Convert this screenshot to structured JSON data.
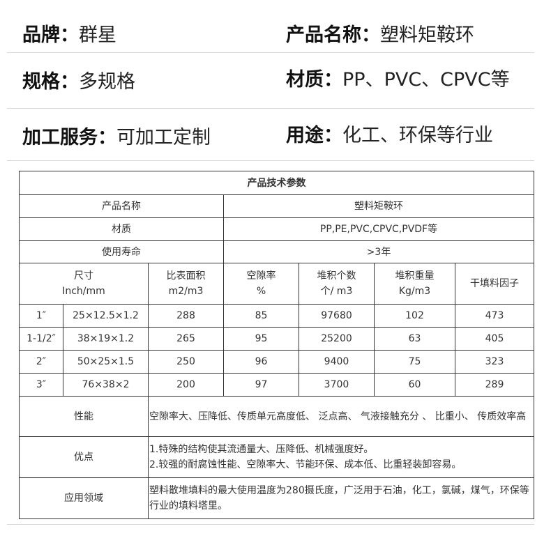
{
  "header": {
    "brand_label": "品牌：",
    "brand_value": "群星",
    "product_label": "产品名称：",
    "product_value": "塑料矩鞍环",
    "spec_label": "规格：",
    "spec_value": "多规格",
    "material_label": "材质：",
    "material_value": "PP、PVC、CPVC等",
    "service_label": "加工服务：",
    "service_value": "可加工定制",
    "usage_label": "用途：",
    "usage_value": "化工、环保等行业"
  },
  "table": {
    "title": "产品技术参数",
    "name_label": "产品名称",
    "name_value": "塑料矩鞍环",
    "material_label": "材质",
    "material_value": "PP,PE,PVC,CPVC,PVDF等",
    "life_label": "使用寿命",
    "life_value": ">3年",
    "columns": [
      {
        "l1": "尺寸",
        "l2": "Inch/mm"
      },
      {
        "l1": "比表面积",
        "l2": "m2/m3"
      },
      {
        "l1": "空隙率",
        "l2": "%"
      },
      {
        "l1": "堆积个数",
        "l2": "个/ m3"
      },
      {
        "l1": "堆积重量",
        "l2": "Kg/m3"
      },
      {
        "l1": "干填料因子",
        "l2": ""
      }
    ],
    "rows": [
      [
        "1″",
        "25×12.5×1.2",
        "288",
        "85",
        "97680",
        "102",
        "473"
      ],
      [
        "1-1/2″",
        "38×19×1.2",
        "265",
        "95",
        "25200",
        "63",
        "405"
      ],
      [
        "2″",
        "50×25×1.5",
        "250",
        "96",
        "9400",
        "75",
        "323"
      ],
      [
        "3″",
        "76×38×2",
        "200",
        "97",
        "3700",
        "60",
        "289"
      ]
    ],
    "performance_label": "性能",
    "performance_value": "空隙率大、压降低、传质单元高度低、 泛点高、 气液接触充分 、 比重小、 传质效率高",
    "advantage_label": "优点",
    "advantage_line1": "1.特殊的结构使其流通量大、压降低、机械强度好。",
    "advantage_line2": "2.较强的耐腐蚀性能、空隙率大、节能环保、成本低、比重轻装卸容易。",
    "application_label": "应用领域",
    "application_value": "塑料散堆填料的最大使用温度为280摄氏度，广泛用于石油，化工，氯碱，煤气，环保等行业的填料塔里。"
  }
}
